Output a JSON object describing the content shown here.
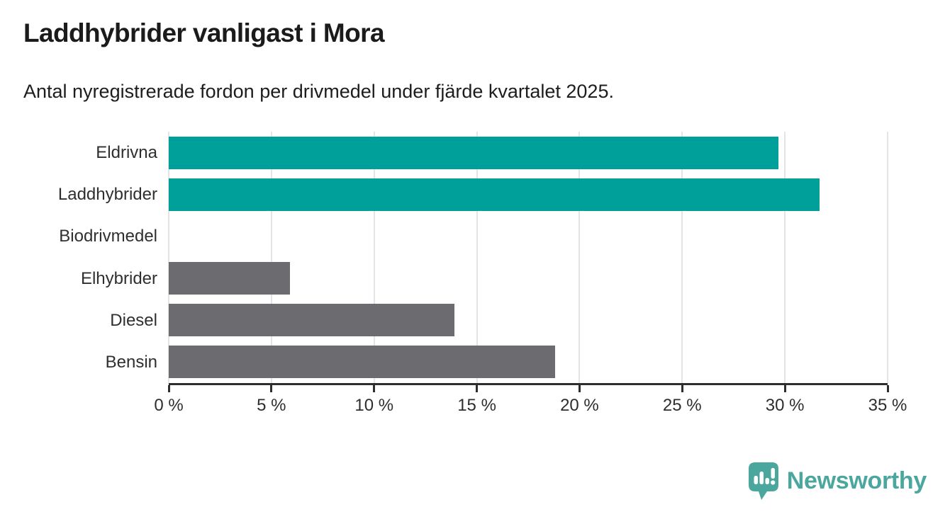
{
  "header": {
    "title": "Laddhybrider vanligast i Mora",
    "subtitle": "Antal nyregistrerade fordon per drivmedel under fjärde kvartalet 2025."
  },
  "chart_data": {
    "type": "bar",
    "orientation": "horizontal",
    "title": "Laddhybrider vanligast i Mora",
    "xlabel": "",
    "ylabel": "",
    "categories": [
      "Eldrivna",
      "Laddhybrider",
      "Biodrivmedel",
      "Elhybrider",
      "Diesel",
      "Bensin"
    ],
    "values": [
      29.7,
      31.7,
      0,
      5.9,
      13.9,
      18.8
    ],
    "unit": "%",
    "xlim": [
      0,
      35
    ],
    "xticks": [
      0,
      5,
      10,
      15,
      20,
      25,
      30,
      35
    ],
    "xtick_labels": [
      "0 %",
      "5 %",
      "10 %",
      "15 %",
      "20 %",
      "25 %",
      "30 %",
      "35 %"
    ],
    "bar_colors": [
      "#00a09a",
      "#00a09a",
      "#6b6b70",
      "#6b6b70",
      "#6b6b70",
      "#6b6b70"
    ],
    "grid": true,
    "legend_position": "none"
  },
  "colors": {
    "teal_bar": "#00a09a",
    "gray_bar": "#6b6b70",
    "gridline": "#e4e4e6",
    "axis": "#2e2e2e",
    "logo_teal": "#4ba79e",
    "text_dark": "#1b1b1b"
  },
  "footer": {
    "brand": "Newsworthy"
  },
  "icons": {
    "logo": "newsworthy-speech-bubble-barchart-icon"
  }
}
